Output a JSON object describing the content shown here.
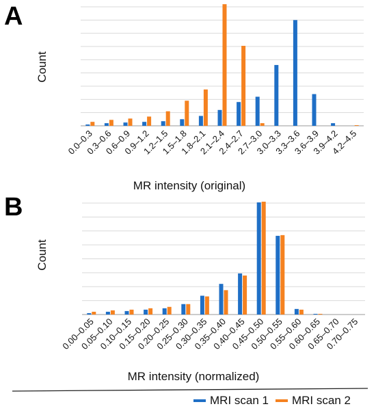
{
  "colors": {
    "series1": "#1f6fc6",
    "series2": "#f58220",
    "grid": "#d9d9d9",
    "axis": "#999999"
  },
  "legend": {
    "items": [
      "MRI scan 1",
      "MRI scan 2"
    ]
  },
  "chart_data": [
    {
      "panel_label": "A",
      "type": "bar",
      "xlabel": "MR intensity (original)",
      "ylabel": "Count",
      "grid": true,
      "ylim": [
        0,
        9
      ],
      "categories": [
        "0.0–0.3",
        "0.3–0.6",
        "0.6–0.9",
        "0.9–1.2",
        "1.2–1.5",
        "1.5–1.8",
        "1.8–2.1",
        "2.1–2.4",
        "2.4–2.7",
        "2.7–3.0",
        "3.0–3.3",
        "3.3–3.6",
        "3.6–3.9",
        "3.9–4.2",
        "4.2–4.5"
      ],
      "series": [
        {
          "name": "MRI scan 1",
          "values": [
            0.1,
            0.2,
            0.25,
            0.3,
            0.35,
            0.5,
            0.75,
            1.2,
            1.8,
            2.2,
            4.6,
            8.0,
            2.4,
            0.2,
            0.0
          ]
        },
        {
          "name": "MRI scan 2",
          "values": [
            0.3,
            0.45,
            0.55,
            0.7,
            1.1,
            1.9,
            2.75,
            9.2,
            6.05,
            0.2,
            0.0,
            0.0,
            0.0,
            0.0,
            0.05
          ]
        }
      ]
    },
    {
      "panel_label": "B",
      "type": "bar",
      "xlabel": "MR intensity (normalized)",
      "ylabel": "Count",
      "grid": true,
      "ylim": [
        0,
        8
      ],
      "categories": [
        "0.00–0.05",
        "0.05–0.10",
        "0.10–0.15",
        "0.15–0.20",
        "0.20–0.25",
        "0.25–0.30",
        "0.30–0.35",
        "0.35–0.40",
        "0.40–0.45",
        "0.45–0.50",
        "0.50–0.55",
        "0.55–0.60",
        "0.60–0.65",
        "0.65–0.70",
        "0.70–0.75"
      ],
      "series": [
        {
          "name": "MRI scan 1",
          "values": [
            0.1,
            0.2,
            0.25,
            0.35,
            0.45,
            0.75,
            1.35,
            2.2,
            2.95,
            8.05,
            5.65,
            0.4,
            0.05,
            0.0,
            0.0
          ]
        },
        {
          "name": "MRI scan 2",
          "values": [
            0.2,
            0.3,
            0.35,
            0.45,
            0.55,
            0.75,
            1.3,
            1.75,
            2.8,
            8.1,
            5.7,
            0.35,
            0.05,
            0.0,
            0.0
          ]
        }
      ]
    }
  ]
}
